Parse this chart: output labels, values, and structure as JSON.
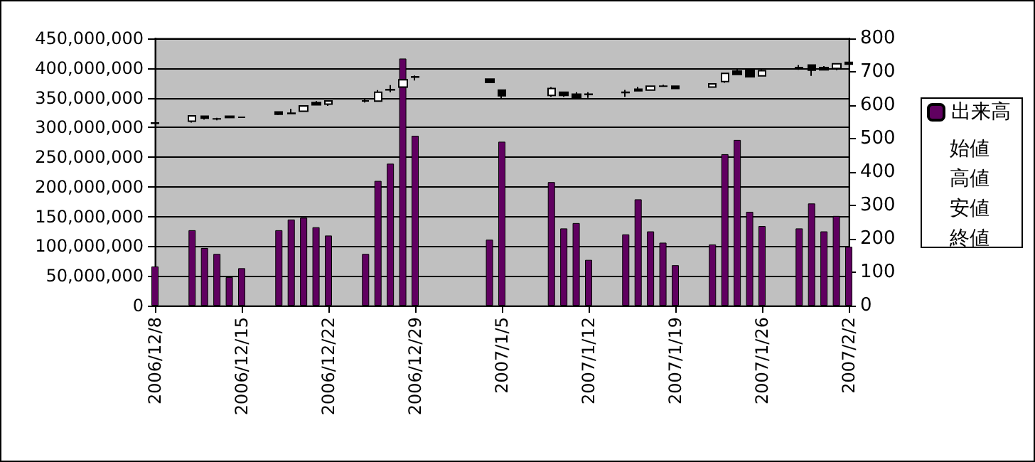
{
  "chart_data": {
    "type": "bar",
    "x": [
      "2006-12-08",
      "2006-12-11",
      "2006-12-12",
      "2006-12-13",
      "2006-12-14",
      "2006-12-15",
      "2006-12-18",
      "2006-12-19",
      "2006-12-20",
      "2006-12-21",
      "2006-12-22",
      "2006-12-25",
      "2006-12-26",
      "2006-12-27",
      "2006-12-28",
      "2006-12-29",
      "2007-01-04",
      "2007-01-05",
      "2007-01-09",
      "2007-01-10",
      "2007-01-11",
      "2007-01-12",
      "2007-01-15",
      "2007-01-16",
      "2007-01-17",
      "2007-01-18",
      "2007-01-19",
      "2007-01-22",
      "2007-01-23",
      "2007-01-24",
      "2007-01-25",
      "2007-01-26",
      "2007-01-29",
      "2007-01-30",
      "2007-01-31",
      "2007-02-01",
      "2007-02-02"
    ],
    "series": [
      {
        "name": "出来高",
        "color": "#600060",
        "values": [
          66000000,
          127000000,
          97000000,
          87000000,
          48000000,
          63000000,
          127000000,
          145000000,
          148000000,
          132000000,
          118000000,
          87000000,
          210000000,
          239000000,
          416000000,
          286000000,
          111000000,
          276000000,
          208000000,
          130000000,
          139000000,
          77000000,
          120000000,
          179000000,
          125000000,
          106000000,
          68000000,
          103000000,
          255000000,
          279000000,
          158000000,
          134000000,
          130000000,
          172000000,
          125000000,
          151000000,
          99000000
        ]
      },
      {
        "type": "candlestick",
        "axis": "y2",
        "color": "#000000",
        "ohlc": [
          [
            547,
            549,
            545,
            546
          ],
          [
            552,
            570,
            548,
            568
          ],
          [
            567,
            567,
            557,
            561
          ],
          [
            559,
            562,
            555,
            559
          ],
          [
            567,
            567,
            563,
            563
          ],
          [
            564,
            565,
            563,
            564
          ],
          [
            580,
            580,
            570,
            573
          ],
          [
            576,
            589,
            575,
            575
          ],
          [
            582,
            598,
            582,
            598
          ],
          [
            608,
            612,
            601,
            601
          ],
          [
            603,
            613,
            598,
            613
          ],
          [
            613,
            620,
            608,
            613
          ],
          [
            612,
            645,
            612,
            639
          ],
          [
            647,
            660,
            639,
            646
          ],
          [
            654,
            676,
            654,
            676
          ],
          [
            685,
            689,
            674,
            684
          ],
          [
            678,
            678,
            668,
            668
          ],
          [
            645,
            645,
            620,
            628
          ],
          [
            629,
            654,
            625,
            650
          ],
          [
            639,
            639,
            625,
            629
          ],
          [
            633,
            639,
            623,
            623
          ],
          [
            633,
            639,
            622,
            632
          ],
          [
            639,
            646,
            625,
            638
          ],
          [
            648,
            655,
            643,
            643
          ],
          [
            645,
            657,
            645,
            657
          ],
          [
            657,
            661,
            657,
            657
          ],
          [
            657,
            657,
            650,
            650
          ],
          [
            654,
            664,
            654,
            664
          ],
          [
            671,
            695,
            667,
            695
          ],
          [
            702,
            710,
            692,
            692
          ],
          [
            706,
            710,
            685,
            685
          ],
          [
            688,
            710,
            688,
            703
          ],
          [
            713,
            720,
            706,
            712
          ],
          [
            720,
            720,
            688,
            705
          ],
          [
            713,
            717,
            706,
            706
          ],
          [
            710,
            724,
            705,
            724
          ],
          [
            728,
            728,
            723,
            723
          ]
        ]
      }
    ],
    "xlim": [
      "2006-12-08",
      "2007-02-02"
    ],
    "xticks": [
      {
        "value": "2006-12-08",
        "label": "2006/12/8"
      },
      {
        "value": "2006-12-15",
        "label": "2006/12/15"
      },
      {
        "value": "2006-12-22",
        "label": "2006/12/22"
      },
      {
        "value": "2006-12-29",
        "label": "2006/12/29"
      },
      {
        "value": "2007-01-05",
        "label": "2007/1/5"
      },
      {
        "value": "2007-01-12",
        "label": "2007/1/12"
      },
      {
        "value": "2007-01-19",
        "label": "2007/1/19"
      },
      {
        "value": "2007-01-26",
        "label": "2007/1/26"
      },
      {
        "value": "2007-02-02",
        "label": "2007/2/2"
      }
    ],
    "ylim": [
      0,
      450000000
    ],
    "yticks": [
      0,
      {
        "value": 50000000,
        "label": "50,000,000"
      },
      {
        "value": 100000000,
        "label": "100,000,000"
      },
      {
        "value": 150000000,
        "label": "150,000,000"
      },
      {
        "value": 200000000,
        "label": "200,000,000"
      },
      {
        "value": 250000000,
        "label": "250,000,000"
      },
      {
        "value": 300000000,
        "label": "300,000,000"
      },
      {
        "value": 350000000,
        "label": "350,000,000"
      },
      {
        "value": 400000000,
        "label": "400,000,000"
      },
      {
        "value": 450000000,
        "label": "450,000,000"
      }
    ],
    "y2lim": [
      0,
      800
    ],
    "y2ticks": [
      0,
      100,
      200,
      300,
      400,
      500,
      600,
      700,
      800
    ],
    "annotations": [
      "始値",
      "高値",
      "安値",
      "終値"
    ],
    "grid": "y",
    "legend": "right"
  }
}
